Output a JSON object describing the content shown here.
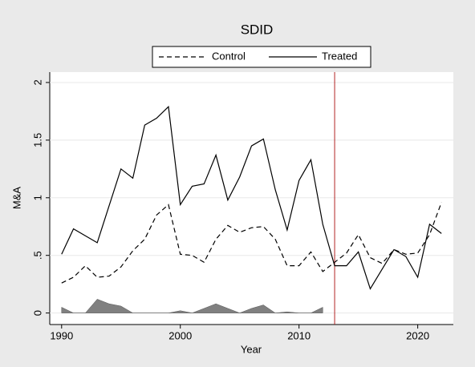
{
  "chart_data": {
    "type": "line",
    "title": "SDID",
    "x": [
      1990,
      1991,
      1992,
      1993,
      1994,
      1995,
      1996,
      1997,
      1998,
      1999,
      2000,
      2001,
      2002,
      2003,
      2004,
      2005,
      2006,
      2007,
      2008,
      2009,
      2010,
      2011,
      2012,
      2013,
      2014,
      2015,
      2016,
      2017,
      2018,
      2019,
      2020,
      2021,
      2022
    ],
    "series": [
      {
        "name": "Control",
        "color": "#000000",
        "dashed": true,
        "values": [
          0.26,
          0.31,
          0.41,
          0.31,
          0.32,
          0.4,
          0.54,
          0.64,
          0.85,
          0.94,
          0.51,
          0.5,
          0.44,
          0.64,
          0.76,
          0.7,
          0.74,
          0.75,
          0.64,
          0.41,
          0.41,
          0.53,
          0.36,
          0.44,
          0.52,
          0.68,
          0.48,
          0.43,
          0.55,
          0.51,
          0.52,
          0.68,
          0.96
        ]
      },
      {
        "name": "Treated",
        "color": "#000000",
        "dashed": false,
        "values": [
          0.51,
          0.73,
          0.67,
          0.61,
          0.93,
          1.25,
          1.17,
          1.63,
          1.69,
          1.79,
          0.94,
          1.1,
          1.12,
          1.37,
          0.98,
          1.18,
          1.45,
          1.51,
          1.07,
          0.72,
          1.15,
          1.33,
          0.77,
          0.41,
          0.41,
          0.53,
          0.21,
          0.38,
          0.55,
          0.49,
          0.31,
          0.77,
          0.69
        ]
      }
    ],
    "weights": {
      "color": "#808080",
      "values": [
        0.05,
        0.0,
        0.0,
        0.12,
        0.08,
        0.06,
        0.0,
        0.0,
        0.0,
        0.0,
        0.02,
        0.0,
        0.04,
        0.08,
        0.04,
        0.0,
        0.04,
        0.07,
        0.0,
        0.01,
        0.0,
        0.0,
        0.05,
        null,
        null,
        null,
        null,
        null,
        null,
        null,
        null,
        null,
        null
      ]
    },
    "treatment_year": 2013,
    "treatment_color": "#b22222",
    "xlabel": "Year",
    "ylabel": "M&A",
    "xlim": [
      1989,
      2023
    ],
    "ylim": [
      -0.1,
      2.09
    ],
    "xticks": [
      1990,
      2000,
      2010,
      2020
    ],
    "yticks": [
      0,
      {
        "value": 0.5,
        "label": ".5"
      },
      1,
      1.5,
      2
    ],
    "grid": true
  }
}
